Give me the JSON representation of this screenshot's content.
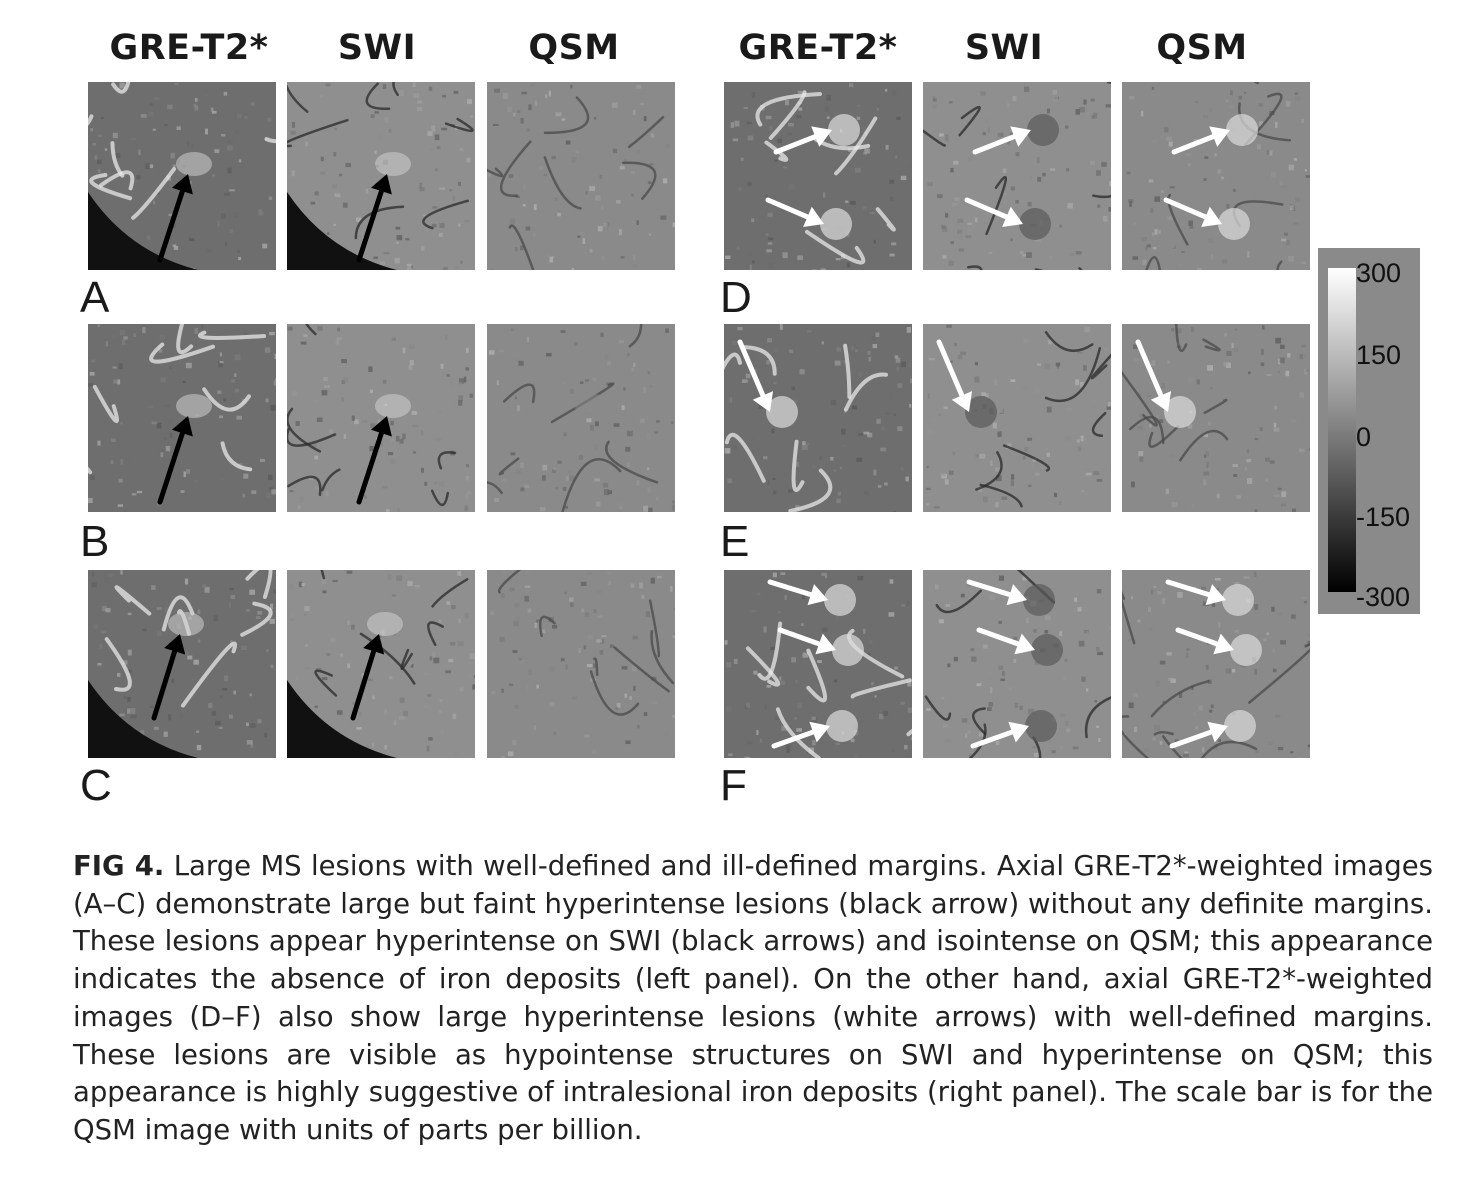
{
  "figure": {
    "left_panel": {
      "columns": [
        "GRE-T2*",
        "SWI",
        "QSM"
      ],
      "rows": [
        "A",
        "B",
        "C"
      ]
    },
    "right_panel": {
      "columns": [
        "GRE-T2*",
        "SWI",
        "QSM"
      ],
      "rows": [
        "D",
        "E",
        "F"
      ]
    },
    "colorbar": {
      "ticks": [
        "300",
        "150",
        "0",
        "-150",
        "-300"
      ],
      "gradient_top": "#ffffff",
      "gradient_bottom": "#000000",
      "frame_color": "#8a8a8a"
    },
    "arrow_colors": {
      "left": "#000000",
      "right": "#ffffff"
    }
  },
  "caption": {
    "label": "FIG 4.",
    "text": "Large MS lesions with well-defined and ill-defined margins. Axial GRE-T2*-weighted images (A–C) demonstrate large but faint hyperintense lesions (black arrow) without any definite margins. These lesions appear hyperintense on SWI (black arrows) and isointense on QSM; this appearance indicates the absence of iron deposits (left panel). On the other hand, axial GRE-T2*-weighted images (D–F) also show large hyperintense lesions (white arrows) with well-defined margins. These lesions are visible as hypointense structures on SWI and hyperintense on QSM; this appearance is highly suggestive of intralesional iron deposits (right panel). The scale bar is for the QSM image with units of parts per billion."
  }
}
